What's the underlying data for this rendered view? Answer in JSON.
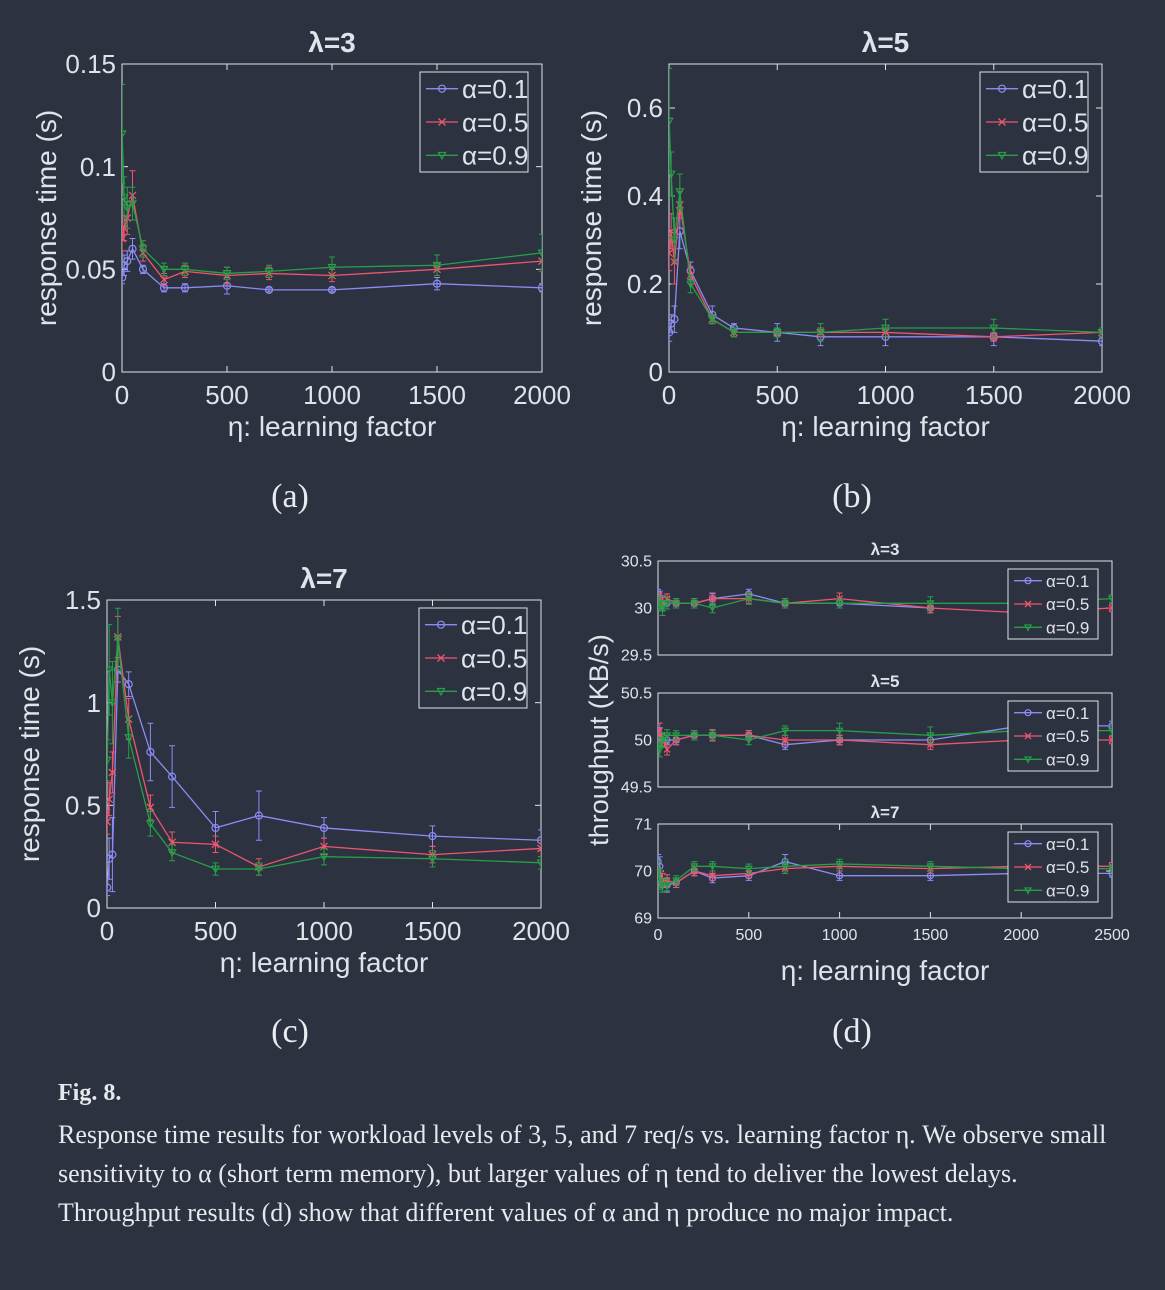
{
  "colors": {
    "alpha_0.1": "#8c8cf5",
    "alpha_0.5": "#f0556e",
    "alpha_0.9": "#26a046",
    "axis": "#dfe3ea",
    "background": "#2c3240"
  },
  "chart_data": [
    {
      "type": "line",
      "panel": "(a)",
      "title": "λ=3",
      "xlabel": "η: learning factor",
      "ylabel": "response time (s)",
      "xlim": [
        0,
        2000
      ],
      "ylim": [
        0,
        0.15
      ],
      "xticks": [
        "0",
        "500",
        "1000",
        "1500",
        "2000"
      ],
      "yticks": [
        "0",
        "0.05",
        "0.1",
        "0.15"
      ],
      "legend_position": "top-right",
      "x": [
        1,
        10,
        25,
        50,
        100,
        200,
        300,
        500,
        700,
        1000,
        1500,
        2000
      ],
      "series": [
        {
          "name": "α=0.1",
          "marker": "circle",
          "values": [
            0.046,
            0.052,
            0.054,
            0.06,
            0.05,
            0.041,
            0.041,
            0.042,
            0.04,
            0.04,
            0.043,
            0.041
          ],
          "err": [
            0.003,
            0.005,
            0.005,
            0.005,
            0.002,
            0.002,
            0.002,
            0.004,
            0.001,
            0.001,
            0.003,
            0.002
          ]
        },
        {
          "name": "α=0.5",
          "marker": "x",
          "values": [
            0.065,
            0.07,
            0.075,
            0.086,
            0.058,
            0.045,
            0.049,
            0.047,
            0.048,
            0.047,
            0.05,
            0.054
          ],
          "err": [
            0.006,
            0.006,
            0.008,
            0.012,
            0.004,
            0.003,
            0.003,
            0.004,
            0.003,
            0.003,
            0.003,
            0.004
          ]
        },
        {
          "name": "α=0.9",
          "marker": "triangle",
          "values": [
            0.116,
            0.085,
            0.08,
            0.082,
            0.06,
            0.05,
            0.05,
            0.048,
            0.049,
            0.051,
            0.052,
            0.058
          ],
          "err": [
            0.024,
            0.01,
            0.01,
            0.008,
            0.004,
            0.003,
            0.003,
            0.003,
            0.003,
            0.005,
            0.005,
            0.009
          ]
        }
      ]
    },
    {
      "type": "line",
      "panel": "(b)",
      "title": "λ=5",
      "xlabel": "η: learning factor",
      "ylabel": "response time (s)",
      "xlim": [
        0,
        2000
      ],
      "ylim": [
        0,
        0.7
      ],
      "xticks": [
        "0",
        "500",
        "1000",
        "1500",
        "2000"
      ],
      "yticks": [
        "0",
        "0.2",
        "0.4",
        "0.6"
      ],
      "legend_position": "top-right",
      "x": [
        1,
        10,
        25,
        50,
        100,
        200,
        300,
        500,
        700,
        1000,
        1500,
        2000
      ],
      "series": [
        {
          "name": "α=0.1",
          "marker": "circle",
          "values": [
            0.09,
            0.11,
            0.12,
            0.32,
            0.23,
            0.13,
            0.1,
            0.09,
            0.08,
            0.08,
            0.08,
            0.07
          ],
          "err": [
            0.02,
            0.02,
            0.03,
            0.04,
            0.02,
            0.02,
            0.01,
            0.02,
            0.02,
            0.02,
            0.02,
            0.01
          ]
        },
        {
          "name": "α=0.5",
          "marker": "x",
          "values": [
            0.27,
            0.32,
            0.25,
            0.38,
            0.22,
            0.12,
            0.09,
            0.09,
            0.09,
            0.09,
            0.08,
            0.09
          ],
          "err": [
            0.04,
            0.04,
            0.05,
            0.03,
            0.02,
            0.01,
            0.01,
            0.01,
            0.01,
            0.01,
            0.01,
            0.01
          ]
        },
        {
          "name": "α=0.9",
          "marker": "triangle",
          "values": [
            0.57,
            0.45,
            0.3,
            0.41,
            0.2,
            0.12,
            0.09,
            0.09,
            0.09,
            0.1,
            0.1,
            0.09
          ],
          "err": [
            0.12,
            0.05,
            0.05,
            0.04,
            0.02,
            0.01,
            0.01,
            0.01,
            0.02,
            0.02,
            0.02,
            0.01
          ]
        }
      ]
    },
    {
      "type": "line",
      "panel": "(c)",
      "title": "λ=7",
      "xlabel": "η: learning factor",
      "ylabel": "response time (s)",
      "xlim": [
        0,
        2000
      ],
      "ylim": [
        0,
        1.5
      ],
      "xticks": [
        "0",
        "500",
        "1000",
        "1500",
        "2000"
      ],
      "yticks": [
        "0",
        "0.5",
        "1",
        "1.5"
      ],
      "legend_position": "top-right",
      "x": [
        1,
        10,
        25,
        50,
        100,
        200,
        300,
        500,
        700,
        1000,
        1500,
        2000
      ],
      "series": [
        {
          "name": "α=0.1",
          "marker": "circle",
          "values": [
            0.1,
            0.24,
            0.26,
            1.16,
            1.09,
            0.76,
            0.64,
            0.39,
            0.45,
            0.39,
            0.35,
            0.33
          ],
          "err": [
            0.04,
            0.1,
            0.18,
            0.06,
            0.06,
            0.14,
            0.15,
            0.08,
            0.12,
            0.05,
            0.05,
            0.05
          ]
        },
        {
          "name": "α=0.5",
          "marker": "x",
          "values": [
            0.42,
            0.53,
            0.66,
            1.32,
            0.92,
            0.49,
            0.32,
            0.31,
            0.2,
            0.3,
            0.26,
            0.29
          ],
          "err": [
            0.06,
            0.08,
            0.1,
            0.1,
            0.1,
            0.06,
            0.05,
            0.04,
            0.04,
            0.04,
            0.04,
            0.04
          ]
        },
        {
          "name": "α=0.9",
          "marker": "triangle",
          "values": [
            0.72,
            1.16,
            1.0,
            1.31,
            0.83,
            0.41,
            0.27,
            0.19,
            0.19,
            0.25,
            0.24,
            0.22
          ],
          "err": [
            0.1,
            0.22,
            0.2,
            0.15,
            0.1,
            0.06,
            0.04,
            0.03,
            0.03,
            0.04,
            0.04,
            0.03
          ]
        }
      ]
    },
    {
      "type": "line",
      "panel": "(d)",
      "ylabel": "throughput (KB/s)",
      "xlabel": "η: learning factor",
      "xlim": [
        0,
        2500
      ],
      "xticks": [
        "0",
        "500",
        "1000",
        "1500",
        "2000",
        "2500"
      ],
      "legend_position": "top-right",
      "subplots": [
        {
          "title": "λ=3",
          "ylim": [
            29.5,
            30.5
          ],
          "yticks": [
            "29.5",
            "30",
            "30.5"
          ],
          "x": [
            1,
            10,
            25,
            50,
            100,
            200,
            300,
            500,
            700,
            1000,
            1500,
            2000,
            2500
          ],
          "series": [
            {
              "name": "α=0.1",
              "marker": "circle",
              "values": [
                30.15,
                30.1,
                30.05,
                30.05,
                30.05,
                30.05,
                30.1,
                30.15,
                30.05,
                30.05,
                30.0,
                null,
                null
              ],
              "err": [
                0.05,
                0.08,
                0.08,
                0.06,
                0.05,
                0.05,
                0.06,
                0.05,
                0.05,
                0.05,
                0.05,
                null,
                null
              ]
            },
            {
              "name": "α=0.5",
              "marker": "x",
              "values": [
                30.05,
                30.1,
                30.05,
                30.1,
                30.05,
                30.05,
                30.1,
                30.1,
                30.05,
                30.1,
                30.0,
                29.95,
                30.0
              ],
              "err": [
                0.05,
                0.06,
                0.06,
                0.05,
                0.05,
                0.05,
                0.05,
                0.05,
                0.05,
                0.06,
                0.05,
                0.04,
                0.04
              ]
            },
            {
              "name": "α=0.9",
              "marker": "triangle",
              "values": [
                30.05,
                30.05,
                30.0,
                30.05,
                30.05,
                30.05,
                30.0,
                30.1,
                30.05,
                30.05,
                30.05,
                30.05,
                30.1
              ],
              "err": [
                0.06,
                0.08,
                0.08,
                0.06,
                0.05,
                0.05,
                0.05,
                0.06,
                0.05,
                0.05,
                0.07,
                0.04,
                0.04
              ]
            }
          ]
        },
        {
          "title": "λ=5",
          "ylim": [
            49.5,
            50.5
          ],
          "yticks": [
            "49.5",
            "50",
            "50.5"
          ],
          "x": [
            1,
            10,
            25,
            50,
            100,
            200,
            300,
            500,
            700,
            1000,
            1500,
            2000,
            2500
          ],
          "series": [
            {
              "name": "α=0.1",
              "marker": "circle",
              "values": [
                50.1,
                50.05,
                50.0,
                50.0,
                50.0,
                50.05,
                50.05,
                50.05,
                49.95,
                50.0,
                50.0,
                50.15,
                50.15
              ],
              "err": [
                0.08,
                0.08,
                0.08,
                0.05,
                0.05,
                0.05,
                0.05,
                0.05,
                0.05,
                0.05,
                0.05,
                0.05,
                0.05
              ]
            },
            {
              "name": "α=0.5",
              "marker": "x",
              "values": [
                50.05,
                50.1,
                50.0,
                49.9,
                50.0,
                50.05,
                50.05,
                50.05,
                50.0,
                50.0,
                49.95,
                50.0,
                50.0
              ],
              "err": [
                0.06,
                0.08,
                0.06,
                0.06,
                0.05,
                0.05,
                0.06,
                0.05,
                0.05,
                0.05,
                0.05,
                0.04,
                0.04
              ]
            },
            {
              "name": "α=0.9",
              "marker": "triangle",
              "values": [
                49.95,
                49.9,
                50.0,
                50.05,
                50.05,
                50.05,
                50.05,
                50.0,
                50.1,
                50.1,
                50.05,
                50.1,
                50.1
              ],
              "err": [
                0.08,
                0.08,
                0.08,
                0.06,
                0.05,
                0.05,
                0.05,
                0.05,
                0.05,
                0.08,
                0.09,
                0.05,
                0.05
              ]
            }
          ]
        },
        {
          "title": "λ=7",
          "ylim": [
            69,
            71
          ],
          "yticks": [
            "69",
            "70",
            "71"
          ],
          "x": [
            1,
            10,
            25,
            50,
            100,
            200,
            300,
            500,
            700,
            1000,
            1500,
            2000,
            2500
          ],
          "series": [
            {
              "name": "α=0.1",
              "marker": "circle",
              "values": [
                70.2,
                70.1,
                69.7,
                69.7,
                69.75,
                70.0,
                69.85,
                69.9,
                70.2,
                69.9,
                69.9,
                69.95,
                69.95
              ],
              "err": [
                0.15,
                0.2,
                0.15,
                0.15,
                0.1,
                0.1,
                0.1,
                0.1,
                0.15,
                0.1,
                0.1,
                0.08,
                0.08
              ]
            },
            {
              "name": "α=0.5",
              "marker": "x",
              "values": [
                70.0,
                69.9,
                69.8,
                69.8,
                69.75,
                70.0,
                69.9,
                69.95,
                70.05,
                70.1,
                70.05,
                70.1,
                70.1
              ],
              "err": [
                0.15,
                0.15,
                0.15,
                0.12,
                0.1,
                0.1,
                0.1,
                0.1,
                0.1,
                0.1,
                0.1,
                0.08,
                0.08
              ]
            },
            {
              "name": "α=0.9",
              "marker": "triangle",
              "values": [
                70.0,
                69.8,
                69.7,
                69.7,
                69.8,
                70.1,
                70.1,
                70.05,
                70.1,
                70.15,
                70.1,
                70.05,
                70.05
              ],
              "err": [
                0.2,
                0.2,
                0.15,
                0.12,
                0.1,
                0.1,
                0.1,
                0.1,
                0.15,
                0.1,
                0.1,
                0.08,
                0.08
              ]
            }
          ]
        }
      ]
    }
  ],
  "subfigure_labels": [
    "(a)",
    "(b)",
    "(c)",
    "(d)"
  ],
  "caption": {
    "label": "Fig. 8.",
    "text": "Response time results for workload levels of 3, 5, and 7 req/s vs. learning factor η. We observe small sensitivity to α (short term memory), but larger values of η tend to deliver the lowest delays. Throughput results (d) show that different values of α and η produce no major impact."
  }
}
